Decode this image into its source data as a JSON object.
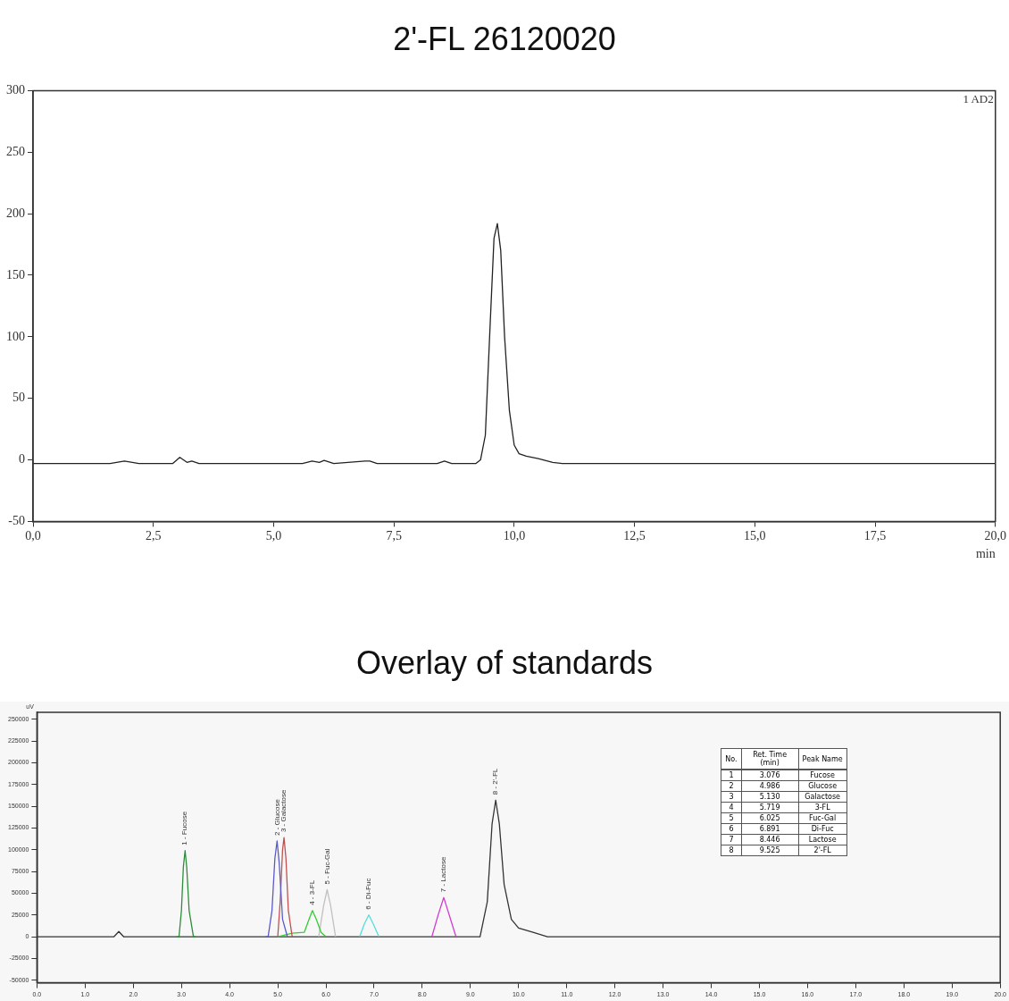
{
  "chart_data": [
    {
      "type": "line",
      "title": "2'-FL 26120020",
      "xlabel": "min",
      "annotations": [
        "1 AD2"
      ],
      "xlim": [
        0,
        20
      ],
      "xticks": [
        {
          "value": 0,
          "label": "0,0"
        },
        {
          "value": 2.5,
          "label": "2,5"
        },
        {
          "value": 5,
          "label": "5,0"
        },
        {
          "value": 7.5,
          "label": "7,5"
        },
        {
          "value": 10,
          "label": "10,0"
        },
        {
          "value": 12.5,
          "label": "12,5"
        },
        {
          "value": 15,
          "label": "15,0"
        },
        {
          "value": 17.5,
          "label": "17,5"
        },
        {
          "value": 20,
          "label": "20,0"
        }
      ],
      "ylim": [
        -50,
        300
      ],
      "yticks": [
        -50,
        0,
        50,
        100,
        150,
        200,
        250,
        300
      ],
      "grid": false,
      "legend": false,
      "series": [
        {
          "color": "#222222",
          "x": [
            0,
            0.5,
            1.0,
            1.6,
            1.9,
            2.2,
            2.9,
            3.05,
            3.2,
            3.3,
            3.45,
            5.6,
            5.8,
            5.95,
            6.05,
            6.25,
            6.9,
            7.0,
            7.15,
            8.4,
            8.55,
            8.7,
            9.2,
            9.3,
            9.4,
            9.5,
            9.58,
            9.65,
            9.72,
            9.8,
            9.9,
            10.0,
            10.1,
            10.25,
            10.5,
            10.8,
            11.0,
            12.0,
            20.0
          ],
          "values": [
            -3,
            -3,
            -3,
            -3,
            -1,
            -3,
            -3,
            2,
            -2,
            -1,
            -3,
            -3,
            -1,
            -2,
            -0.5,
            -3,
            -1,
            -1,
            -3,
            -3,
            -1,
            -3,
            -3,
            0,
            20,
            110,
            180,
            192,
            170,
            100,
            40,
            12,
            5,
            3,
            1,
            -2,
            -3,
            -3,
            -3
          ]
        }
      ]
    },
    {
      "type": "line",
      "title": "Overlay of standards",
      "ylabel": "uV",
      "xlim": [
        0,
        20
      ],
      "xticks": [
        {
          "value": 0,
          "label": "0.0"
        },
        {
          "value": 1,
          "label": "1.0"
        },
        {
          "value": 2,
          "label": "2.0"
        },
        {
          "value": 3,
          "label": "3.0"
        },
        {
          "value": 4,
          "label": "4.0"
        },
        {
          "value": 5,
          "label": "5.0"
        },
        {
          "value": 6,
          "label": "6.0"
        },
        {
          "value": 7,
          "label": "7.0"
        },
        {
          "value": 8,
          "label": "8.0"
        },
        {
          "value": 9,
          "label": "9.0"
        },
        {
          "value": 10,
          "label": "10.0"
        },
        {
          "value": 11,
          "label": "11.0"
        },
        {
          "value": 12,
          "label": "12.0"
        },
        {
          "value": 13,
          "label": "13.0"
        },
        {
          "value": 14,
          "label": "14.0"
        },
        {
          "value": 15,
          "label": "15.0"
        },
        {
          "value": 16,
          "label": "16.0"
        },
        {
          "value": 17,
          "label": "17.0"
        },
        {
          "value": 18,
          "label": "18.0"
        },
        {
          "value": 19,
          "label": "19.0"
        },
        {
          "value": 20,
          "label": "20.0"
        }
      ],
      "ylim": [
        -53000,
        258000
      ],
      "yticks": [
        -50000,
        -25000,
        0,
        25000,
        50000,
        75000,
        100000,
        125000,
        150000,
        175000,
        200000,
        225000,
        250000
      ],
      "grid": false,
      "legend": false,
      "annotations": [
        {
          "text": "1 - Fucose",
          "x": 3.076,
          "y": 99000
        },
        {
          "text": "2 - Glucose",
          "x": 4.986,
          "y": 110000
        },
        {
          "text": "3 - Galactose",
          "x": 5.13,
          "y": 114000
        },
        {
          "text": "4 - 3-FL",
          "x": 5.719,
          "y": 30000
        },
        {
          "text": "5 - Fuc-Gal",
          "x": 6.025,
          "y": 54000
        },
        {
          "text": "6 - Di-Fuc",
          "x": 6.891,
          "y": 25000
        },
        {
          "text": "7 - Lactose",
          "x": 8.446,
          "y": 45000
        },
        {
          "text": "8 - 2'-FL",
          "x": 9.525,
          "y": 157000
        },
        "No.",
        "Ret. Time (min)",
        "Peak Name",
        "1",
        "3.076",
        "Fucose",
        "2",
        "4.986",
        "Glucose",
        "3",
        "5.130",
        "Galactose",
        "4",
        "5.719",
        "3-FL",
        "5",
        "6.025",
        "Fuc-Gal",
        "6",
        "6.891",
        "Di-Fuc",
        "7",
        "8.446",
        "Lactose",
        "8",
        "9.525",
        "2'-FL"
      ],
      "series": [
        {
          "color": "#2e8b3a",
          "x": [
            2.9,
            2.95,
            3.0,
            3.04,
            3.076,
            3.11,
            3.16,
            3.25,
            3.3
          ],
          "values": [
            0,
            0,
            30000,
            80000,
            99000,
            80000,
            30000,
            0,
            0
          ]
        },
        {
          "color": "#5a5ac8",
          "x": [
            4.75,
            4.8,
            4.88,
            4.94,
            4.986,
            5.03,
            5.1,
            5.2
          ],
          "values": [
            0,
            0,
            30000,
            90000,
            110000,
            85000,
            20000,
            0
          ]
        },
        {
          "color": "#c05050",
          "x": [
            5.0,
            5.05,
            5.1,
            5.13,
            5.17,
            5.22,
            5.3
          ],
          "values": [
            0,
            40000,
            100000,
            114000,
            90000,
            30000,
            0
          ]
        },
        {
          "color": "#33cc33",
          "x": [
            5.0,
            5.3,
            5.55,
            5.65,
            5.719,
            5.8,
            5.9,
            6.0
          ],
          "values": [
            0,
            4000,
            5000,
            20000,
            30000,
            20000,
            5000,
            0
          ]
        },
        {
          "color": "#c0c0c0",
          "x": [
            5.85,
            5.95,
            6.025,
            6.1,
            6.2
          ],
          "values": [
            0,
            35000,
            54000,
            35000,
            0
          ]
        },
        {
          "color": "#55dddd",
          "x": [
            6.7,
            6.8,
            6.891,
            6.98,
            7.1
          ],
          "values": [
            0,
            15000,
            25000,
            15000,
            0
          ]
        },
        {
          "color": "#d040d0",
          "x": [
            8.2,
            8.33,
            8.446,
            8.56,
            8.7
          ],
          "values": [
            0,
            25000,
            45000,
            25000,
            0
          ]
        },
        {
          "color": "#333333",
          "x": [
            0,
            1.6,
            1.7,
            1.8,
            9.2,
            9.35,
            9.45,
            9.525,
            9.6,
            9.7,
            9.85,
            10.0,
            10.3,
            10.6,
            20
          ],
          "values": [
            0,
            0,
            6000,
            0,
            0,
            40000,
            130000,
            157000,
            130000,
            60000,
            20000,
            10000,
            5000,
            0,
            0
          ]
        }
      ]
    }
  ]
}
